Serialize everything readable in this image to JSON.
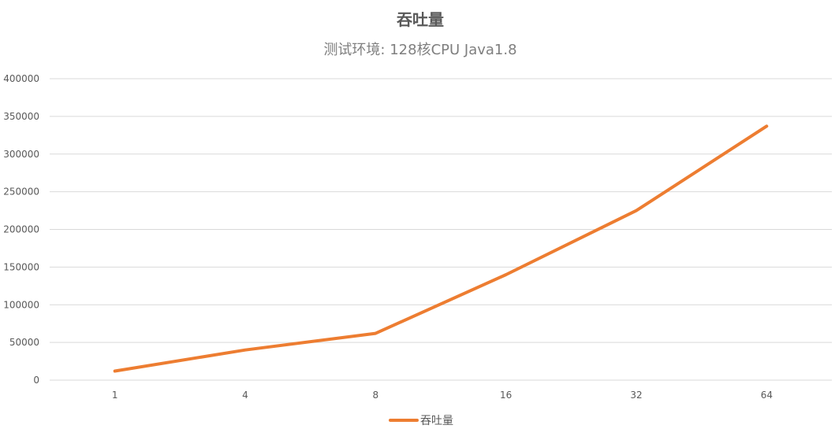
{
  "colors": {
    "series": "#ED7D31",
    "grid": "#D9D9D9",
    "text": "#595959",
    "subtitle": "#7F7F7F"
  },
  "chart_data": {
    "type": "line",
    "title": "吞吐量",
    "subtitle": "测试环境: 128核CPU  Java1.8",
    "categories": [
      "1",
      "4",
      "8",
      "16",
      "32",
      "64"
    ],
    "series": [
      {
        "name": "吞吐量",
        "values": [
          12000,
          40000,
          62000,
          140000,
          225000,
          337000
        ]
      }
    ],
    "ylim": [
      0,
      400000
    ],
    "y_ticks": [
      0,
      50000,
      100000,
      150000,
      200000,
      250000,
      300000,
      350000,
      400000
    ],
    "grid": true,
    "legend": "bottom"
  }
}
